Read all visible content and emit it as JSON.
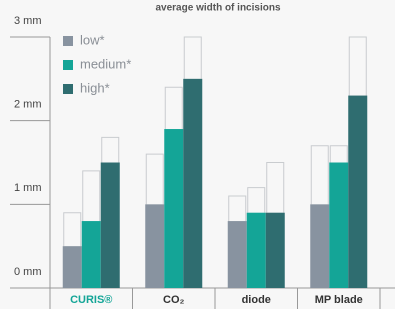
{
  "chart_data": {
    "type": "bar",
    "title": "average width of incisions",
    "categories": [
      "CURIS®",
      "CO₂",
      "diode",
      "MP blade"
    ],
    "category_label_colors": [
      "#14a597",
      "#333333",
      "#333333",
      "#333333"
    ],
    "series": [
      {
        "name": "low*",
        "color": "#8893a0",
        "values": [
          0.5,
          1.0,
          0.8,
          1.0
        ],
        "errors": [
          0.4,
          0.6,
          0.3,
          0.7
        ]
      },
      {
        "name": "medium*",
        "color": "#14a597",
        "values": [
          0.8,
          1.9,
          0.9,
          1.5
        ],
        "errors": [
          0.6,
          0.5,
          0.3,
          0.2
        ]
      },
      {
        "name": "high*",
        "color": "#2f6d70",
        "values": [
          1.5,
          2.5,
          0.9,
          2.3
        ],
        "errors": [
          0.3,
          0.5,
          0.6,
          0.7
        ]
      }
    ],
    "ylim": [
      0,
      3
    ],
    "yticks": [
      {
        "value": 0,
        "label": "0 mm"
      },
      {
        "value": 1,
        "label": "1 mm"
      },
      {
        "value": 2,
        "label": "2 mm"
      },
      {
        "value": 3,
        "label": "3 mm"
      }
    ],
    "grid": true,
    "legend": "top-left"
  }
}
